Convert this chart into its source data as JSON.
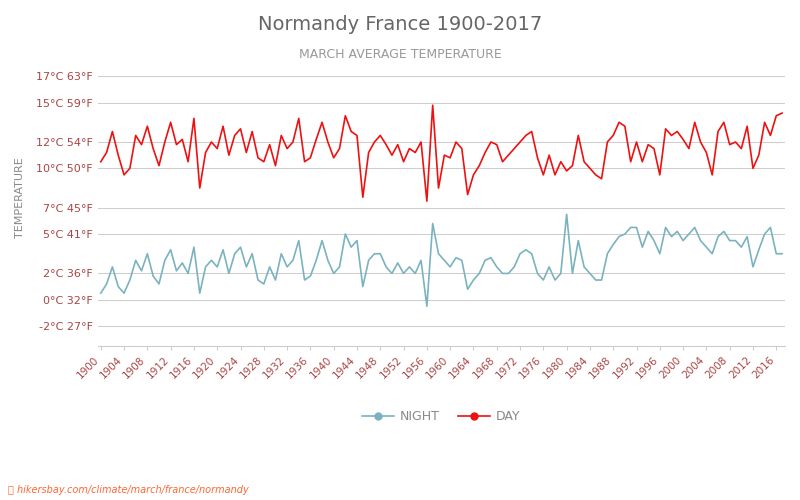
{
  "title": "Normandy France 1900-2017",
  "subtitle": "MARCH AVERAGE TEMPERATURE",
  "xlabel_rotated": true,
  "ylabel": "TEMPERATURE",
  "watermark": "hikersbay.com/climate/march/france/normandy",
  "legend_night": "NIGHT",
  "legend_day": "DAY",
  "day_color": "#ee1111",
  "night_color": "#7ab3bf",
  "background_color": "#ffffff",
  "grid_color": "#cccccc",
  "title_color": "#555555",
  "subtitle_color": "#888888",
  "ylabel_color": "#888888",
  "tick_color": "#aa4444",
  "yticks_c": [
    -2,
    0,
    2,
    5,
    7,
    10,
    12,
    15,
    17
  ],
  "yticks_f": [
    27,
    32,
    36,
    41,
    45,
    50,
    54,
    59,
    63
  ],
  "ylim": [
    -3.5,
    19
  ],
  "years": [
    1900,
    1901,
    1902,
    1903,
    1904,
    1905,
    1906,
    1907,
    1908,
    1909,
    1910,
    1911,
    1912,
    1913,
    1914,
    1915,
    1916,
    1917,
    1918,
    1919,
    1920,
    1921,
    1922,
    1923,
    1924,
    1925,
    1926,
    1927,
    1928,
    1929,
    1930,
    1931,
    1932,
    1933,
    1934,
    1935,
    1936,
    1937,
    1938,
    1939,
    1940,
    1941,
    1942,
    1943,
    1944,
    1945,
    1946,
    1947,
    1948,
    1949,
    1950,
    1951,
    1952,
    1953,
    1954,
    1955,
    1956,
    1957,
    1958,
    1959,
    1960,
    1961,
    1962,
    1963,
    1964,
    1965,
    1966,
    1967,
    1968,
    1969,
    1970,
    1971,
    1972,
    1973,
    1974,
    1975,
    1976,
    1977,
    1978,
    1979,
    1980,
    1981,
    1982,
    1983,
    1984,
    1985,
    1986,
    1987,
    1988,
    1989,
    1990,
    1991,
    1992,
    1993,
    1994,
    1995,
    1996,
    1997,
    1998,
    1999,
    2000,
    2001,
    2002,
    2003,
    2004,
    2005,
    2006,
    2007,
    2008,
    2009,
    2010,
    2011,
    2012,
    2013,
    2014,
    2015,
    2016,
    2017
  ],
  "day_temps": [
    10.5,
    11.2,
    12.8,
    11.0,
    9.5,
    10.0,
    12.5,
    11.8,
    13.2,
    11.5,
    10.2,
    12.0,
    13.5,
    11.8,
    12.2,
    10.5,
    13.8,
    8.5,
    11.2,
    12.0,
    11.5,
    13.2,
    11.0,
    12.5,
    13.0,
    11.2,
    12.8,
    10.8,
    10.5,
    11.8,
    10.2,
    12.5,
    11.5,
    12.0,
    13.8,
    10.5,
    10.8,
    12.2,
    13.5,
    12.0,
    10.8,
    11.5,
    14.0,
    12.8,
    12.5,
    7.8,
    11.2,
    12.0,
    12.5,
    11.8,
    11.0,
    11.8,
    10.5,
    11.5,
    11.2,
    12.0,
    7.5,
    14.8,
    8.5,
    11.0,
    10.8,
    12.0,
    11.5,
    8.0,
    9.5,
    10.2,
    11.2,
    12.0,
    11.8,
    10.5,
    11.0,
    11.5,
    12.0,
    12.5,
    12.8,
    10.8,
    9.5,
    11.0,
    9.5,
    10.5,
    9.8,
    10.2,
    12.5,
    10.5,
    10.0,
    9.5,
    9.2,
    12.0,
    12.5,
    13.5,
    13.2,
    10.5,
    12.0,
    10.5,
    11.8,
    11.5,
    9.5,
    13.0,
    12.5,
    12.8,
    12.2,
    11.5,
    13.5,
    12.0,
    11.2,
    9.5,
    12.8,
    13.5,
    11.8,
    12.0,
    11.5,
    13.2,
    10.0,
    11.0,
    13.5,
    12.5,
    14.0,
    14.2
  ],
  "night_temps": [
    0.5,
    1.2,
    2.5,
    1.0,
    0.5,
    1.5,
    3.0,
    2.2,
    3.5,
    1.8,
    1.2,
    3.0,
    3.8,
    2.2,
    2.8,
    2.0,
    4.0,
    0.5,
    2.5,
    3.0,
    2.5,
    3.8,
    2.0,
    3.5,
    4.0,
    2.5,
    3.5,
    1.5,
    1.2,
    2.5,
    1.5,
    3.5,
    2.5,
    3.0,
    4.5,
    1.5,
    1.8,
    3.0,
    4.5,
    3.0,
    2.0,
    2.5,
    5.0,
    4.0,
    4.5,
    1.0,
    3.0,
    3.5,
    3.5,
    2.5,
    2.0,
    2.8,
    2.0,
    2.5,
    2.0,
    3.0,
    -0.5,
    5.8,
    3.5,
    3.0,
    2.5,
    3.2,
    3.0,
    0.8,
    1.5,
    2.0,
    3.0,
    3.2,
    2.5,
    2.0,
    2.0,
    2.5,
    3.5,
    3.8,
    3.5,
    2.0,
    1.5,
    2.5,
    1.5,
    2.0,
    6.5,
    2.0,
    4.5,
    2.5,
    2.0,
    1.5,
    1.5,
    3.5,
    4.2,
    4.8,
    5.0,
    5.5,
    5.5,
    4.0,
    5.2,
    4.5,
    3.5,
    5.5,
    4.8,
    5.2,
    4.5,
    5.0,
    5.5,
    4.5,
    4.0,
    3.5,
    4.8,
    5.2,
    4.5,
    4.5,
    4.0,
    4.8,
    2.5,
    3.8,
    5.0,
    5.5,
    3.5,
    3.5
  ]
}
